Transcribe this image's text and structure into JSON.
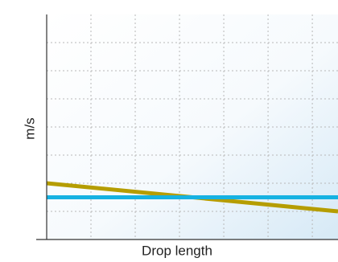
{
  "chart_data": {
    "type": "line",
    "x_label": "Drop length",
    "y_label": "m/s",
    "x": [
      0,
      6.58
    ],
    "series": [
      {
        "color": "#b59d00",
        "values": [
          2.0,
          1.0
        ]
      },
      {
        "color": "#16b2e2",
        "values": [
          1.5,
          1.5
        ]
      }
    ],
    "xlim": [
      0,
      6.58
    ],
    "xticks": [
      1,
      2,
      3,
      4,
      5,
      6
    ],
    "ylim": [
      0,
      8
    ],
    "yticks": [
      1,
      2,
      3,
      4,
      5,
      6,
      7
    ],
    "grid": true
  }
}
